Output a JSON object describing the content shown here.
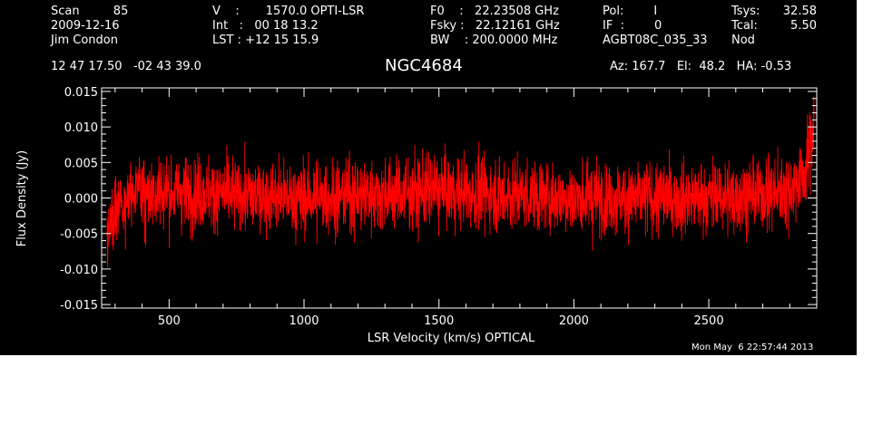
{
  "header": {
    "col1": [
      "Scan         85",
      "2009-12-16",
      "Jim Condon"
    ],
    "col2": [
      "V    :       1570.0 OPTI-LSR",
      "Int   :   00 18 13.2",
      "LST : +12 15 15.9"
    ],
    "col3": [
      "F0    :   22.23508 GHz",
      "Fsky :   22.12161 GHz",
      "BW    : 200.0000 MHz"
    ],
    "col4": [
      "Pol:        I",
      "IF  :        0",
      "AGBT08C_035_33"
    ],
    "col5": [
      "Tsys:",
      "Tcal:",
      "Nod"
    ],
    "col6": [
      "32.58",
      "5.50",
      ""
    ],
    "coords": "12 47 17.50   -02 43 39.0",
    "source": "NGC4684",
    "pointing": "Az: 167.7   El:  48.2   HA: -0.53",
    "timestamp": "Mon May  6 22:57:44 2013"
  },
  "chart_data": {
    "type": "line",
    "title": "NGC4684",
    "xlabel": "LSR Velocity (km/s) OPTICAL",
    "ylabel": "Flux Density (Jy)",
    "xlim": [
      250,
      2900
    ],
    "ylim": [
      -0.0155,
      0.0155
    ],
    "x_ticks": [
      500,
      1000,
      1500,
      2000,
      2500
    ],
    "y_ticks": [
      -0.015,
      -0.01,
      -0.005,
      0.0,
      0.005,
      0.01,
      0.015
    ],
    "y_tick_labels": [
      "-0.015",
      "-0.010",
      "-0.005",
      "0.000",
      "0.005",
      "0.010",
      "0.015"
    ],
    "grid": false,
    "series": [
      {
        "color": "#ff0000",
        "x_start": 270,
        "x_end": 2890,
        "noise_rms_jy": 0.0035,
        "envelope_samples": [
          {
            "x": 270,
            "mean": -0.006
          },
          {
            "x": 300,
            "mean": -0.001
          },
          {
            "x": 400,
            "mean": 0.001
          },
          {
            "x": 1000,
            "mean": 0.0
          },
          {
            "x": 1500,
            "mean": 0.001
          },
          {
            "x": 2000,
            "mean": 0.0
          },
          {
            "x": 2500,
            "mean": 0.0
          },
          {
            "x": 2800,
            "mean": 0.001
          },
          {
            "x": 2860,
            "mean": 0.004
          },
          {
            "x": 2890,
            "mean": 0.011
          }
        ]
      }
    ]
  },
  "colors": {
    "background": "#000000",
    "foreground": "#ffffff",
    "trace": "#ff0000"
  }
}
